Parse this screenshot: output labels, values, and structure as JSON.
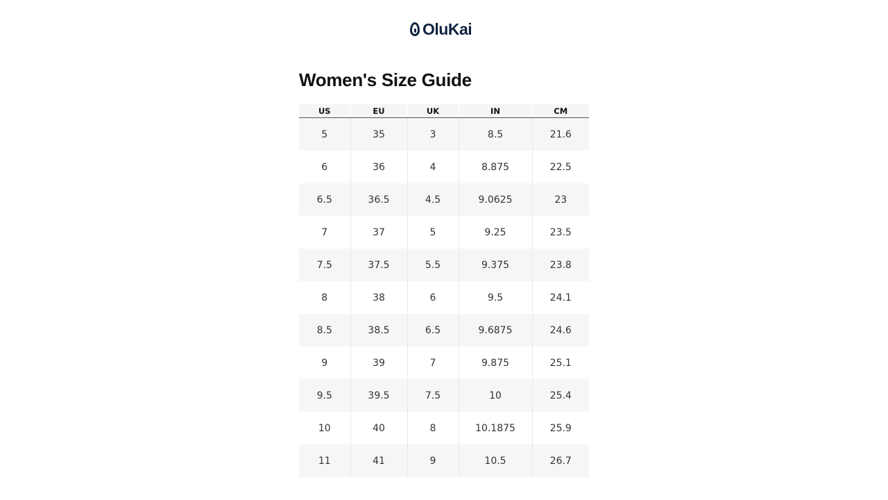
{
  "brand": {
    "name": "OluKai",
    "color": "#0f2340"
  },
  "page_title": "Women's Size Guide",
  "table": {
    "headers": [
      "US",
      "EU",
      "UK",
      "IN",
      "CM"
    ],
    "rows": [
      [
        "5",
        "35",
        "3",
        "8.5",
        "21.6"
      ],
      [
        "6",
        "36",
        "4",
        "8.875",
        "22.5"
      ],
      [
        "6.5",
        "36.5",
        "4.5",
        "9.0625",
        "23"
      ],
      [
        "7",
        "37",
        "5",
        "9.25",
        "23.5"
      ],
      [
        "7.5",
        "37.5",
        "5.5",
        "9.375",
        "23.8"
      ],
      [
        "8",
        "38",
        "6",
        "9.5",
        "24.1"
      ],
      [
        "8.5",
        "38.5",
        "6.5",
        "9.6875",
        "24.6"
      ],
      [
        "9",
        "39",
        "7",
        "9.875",
        "25.1"
      ],
      [
        "9.5",
        "39.5",
        "7.5",
        "10",
        "25.4"
      ],
      [
        "10",
        "40",
        "8",
        "10.1875",
        "25.9"
      ],
      [
        "11",
        "41",
        "9",
        "10.5",
        "26.7"
      ]
    ]
  }
}
